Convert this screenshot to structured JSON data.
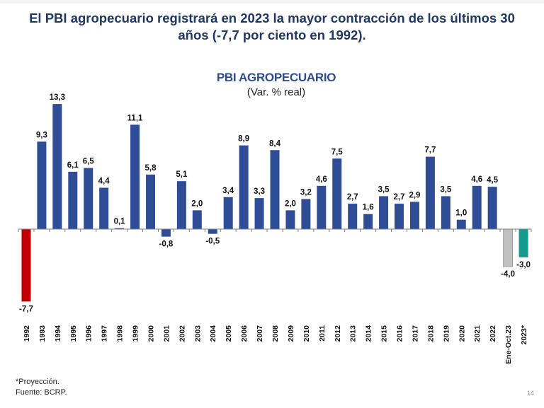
{
  "headline": {
    "line1": "El PBI agropecuario registrará en 2023 la mayor contracción de los últimos 30",
    "line2": "años (-7,7 por ciento en 1992)."
  },
  "footnotes": {
    "projection": "*Proyección.",
    "source": "Fuente: BCRP."
  },
  "page_number": "14",
  "colors": {
    "default_bar": "#2e4d96",
    "highlight_negative_1992": "#c00000",
    "partial_year": "#c0c0c0",
    "projection": "#149a8f",
    "headline": "#1f3864"
  },
  "chart_data": {
    "type": "bar",
    "title": "PBI AGROPECUARIO",
    "subtitle": "(Var. % real)",
    "xlabel": "",
    "ylabel": "",
    "ylim": [
      -8,
      14
    ],
    "grid": false,
    "legend": "none",
    "categories": [
      "1992",
      "1993",
      "1994",
      "1995",
      "1996",
      "1997",
      "1998",
      "1999",
      "2000",
      "2001",
      "2002",
      "2003",
      "2004",
      "2005",
      "2006",
      "2007",
      "2008",
      "2009",
      "2010",
      "2011",
      "2012",
      "2013",
      "2014",
      "2015",
      "2016",
      "2017",
      "2018",
      "2019",
      "2020",
      "2021",
      "2022",
      "Ene-Oct.23",
      "2023*"
    ],
    "values": [
      -7.7,
      9.3,
      13.3,
      6.1,
      6.5,
      4.4,
      0.1,
      11.1,
      5.8,
      -0.8,
      5.1,
      2.0,
      -0.5,
      3.4,
      8.9,
      3.3,
      8.4,
      2.0,
      3.2,
      4.6,
      7.5,
      2.7,
      1.6,
      3.5,
      2.7,
      2.9,
      7.7,
      3.5,
      1.0,
      4.6,
      4.5,
      -4.0,
      -3.0
    ],
    "labels": [
      "-7,7",
      "9,3",
      "13,3",
      "6,1",
      "6,5",
      "4,4",
      "0,1",
      "11,1",
      "5,8",
      "-0,8",
      "5,1",
      "2,0",
      "-0,5",
      "3,4",
      "8,9",
      "3,3",
      "8,4",
      "2,0",
      "3,2",
      "4,6",
      "7,5",
      "2,7",
      "1,6",
      "3,5",
      "2,7",
      "2,9",
      "7,7",
      "3,5",
      "1,0",
      "4,6",
      "4,5",
      "-4,0",
      "-3,0"
    ],
    "bar_color_keys": [
      "highlight_negative_1992",
      "default_bar",
      "default_bar",
      "default_bar",
      "default_bar",
      "default_bar",
      "default_bar",
      "default_bar",
      "default_bar",
      "default_bar",
      "default_bar",
      "default_bar",
      "default_bar",
      "default_bar",
      "default_bar",
      "default_bar",
      "default_bar",
      "default_bar",
      "default_bar",
      "default_bar",
      "default_bar",
      "default_bar",
      "default_bar",
      "default_bar",
      "default_bar",
      "default_bar",
      "default_bar",
      "default_bar",
      "default_bar",
      "default_bar",
      "default_bar",
      "partial_year",
      "projection"
    ]
  }
}
